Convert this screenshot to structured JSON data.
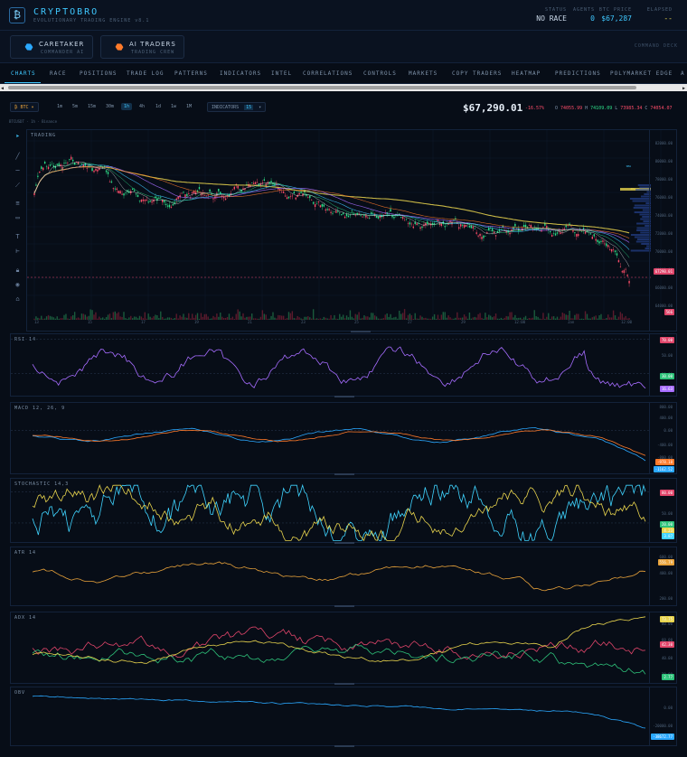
{
  "header": {
    "logo_glyph": "₿",
    "brand": "CRYPTOBRO",
    "subtitle": "EVOLUTIONARY TRADING ENGINE v8.1",
    "stats": [
      {
        "key": "STATUS",
        "value": "NO RACE",
        "color": "#c8d6e6"
      },
      {
        "key": "AGENTS",
        "value": "0",
        "color": "#3fc8ff"
      },
      {
        "key": "BTC PRICE",
        "value": "$67,287",
        "color": "#3fc8ff"
      },
      {
        "key": "ELAPSED",
        "value": "--",
        "color": "#e8d44d"
      }
    ]
  },
  "agents": {
    "cards": [
      {
        "title": "CARETAKER",
        "sub": "COMMANDER AI",
        "color": "#2aa8ff"
      },
      {
        "title": "AI TRADERS",
        "sub": "TRADING CREW",
        "color": "#ff7a2a"
      }
    ],
    "command_deck": "COMMAND DECK"
  },
  "tabs": [
    "CHARTS",
    "RACE",
    "POSITIONS",
    "TRADE LOG",
    "PATTERNS",
    "INDICATORS",
    "INTEL",
    "CORRELATIONS",
    "CONTROLS",
    "MARKETS",
    "COPY TRADERS",
    "HEATMAP",
    "PREDICTIONS",
    "POLYMARKET EDGE",
    "A"
  ],
  "scroll": {
    "left": "◀",
    "right": "▶"
  },
  "controls": {
    "symbol": "₿ BTC ▾",
    "timeframes": [
      "1m",
      "5m",
      "15m",
      "30m",
      "1h",
      "4h",
      "1d",
      "1w",
      "1M"
    ],
    "active_timeframe": "1h",
    "indicators_label": "INDICATORS",
    "indicators_count": "15",
    "indicators_caret": "▾",
    "price": "$67,290.01",
    "change": "-16.57%",
    "ohlc": [
      {
        "label": "O",
        "value": "74055.99",
        "color": "#ff4d6a"
      },
      {
        "label": "H",
        "value": "74109.09",
        "color": "#2ee08a"
      },
      {
        "label": "L",
        "value": "73985.34",
        "color": "#ff4d6a"
      },
      {
        "label": "C",
        "value": "74054.07",
        "color": "#ff4d6a"
      }
    ]
  },
  "symbol_line": "BTCUSDT · 1h · Binance",
  "main": {
    "label": "TRADING",
    "price_ticks": [
      "82000.00",
      "80000.00",
      "78000.00",
      "76000.00",
      "74000.00",
      "72000.00",
      "70000.00",
      "68000.00",
      "66000.00",
      "64000.00"
    ],
    "small_tag_1": "SMA",
    "small_tag_2": "EMA",
    "last_tag": "67290.01",
    "volume_tag": "566",
    "x_labels": [
      "13",
      "15",
      "17",
      "19",
      "21",
      "23",
      "25",
      "27",
      "29",
      "12:00",
      "Jan",
      "12:00"
    ]
  },
  "panes": {
    "rsi": {
      "label": "RSI 14",
      "ticks": [
        "70.00",
        "50.00",
        "30.00"
      ],
      "tags": [
        {
          "v": "70.00",
          "c": "#e0456a"
        },
        {
          "v": "30.00",
          "c": "#2ec27a"
        },
        {
          "v": "16.63",
          "c": "#a66cff"
        }
      ]
    },
    "macd": {
      "label": "MACD 12, 26, 9",
      "ticks": [
        "800.00",
        "400.00",
        "0.00",
        "-400.00",
        "-800.00"
      ],
      "tags": [
        {
          "v": "-978.18",
          "c": "#ff7a2a"
        },
        {
          "v": "-1162.52",
          "c": "#2aa8ff"
        }
      ]
    },
    "stoch": {
      "label": "STOCHASTIC 14,3",
      "ticks": [
        "80.00",
        "50.00",
        "20.00"
      ],
      "tags": [
        {
          "v": "80.00",
          "c": "#e0456a"
        },
        {
          "v": "20.00",
          "c": "#2ec27a"
        },
        {
          "v": "4.23",
          "c": "#e8d44d"
        },
        {
          "v": "3.87",
          "c": "#3fd4ff"
        }
      ]
    },
    "atr": {
      "label": "ATR 14",
      "ticks": [
        "600.00",
        "400.00",
        "200.00"
      ],
      "tags": [
        {
          "v": "556.79",
          "c": "#e8a23a"
        }
      ]
    },
    "adx": {
      "label": "ADX 14",
      "ticks": [
        "80.00",
        "60.00",
        "40.00",
        "20.00"
      ],
      "tags": [
        {
          "v": "73.75",
          "c": "#e8d44d"
        },
        {
          "v": "42.30",
          "c": "#e0456a"
        },
        {
          "v": "2.77",
          "c": "#2ec27a"
        }
      ]
    },
    "obv": {
      "label": "OBV",
      "ticks": [
        "0.00",
        "-20000.00"
      ],
      "tags": [
        {
          "v": "-38672.77",
          "c": "#2aa8ff"
        }
      ]
    }
  },
  "toolbar_icons": [
    "cursor-icon",
    "line-icon",
    "hline-icon",
    "ray-icon",
    "fib-icon",
    "rect-icon",
    "text-icon",
    "measure-icon",
    "lock-icon",
    "eye-icon",
    "trash-icon"
  ]
}
